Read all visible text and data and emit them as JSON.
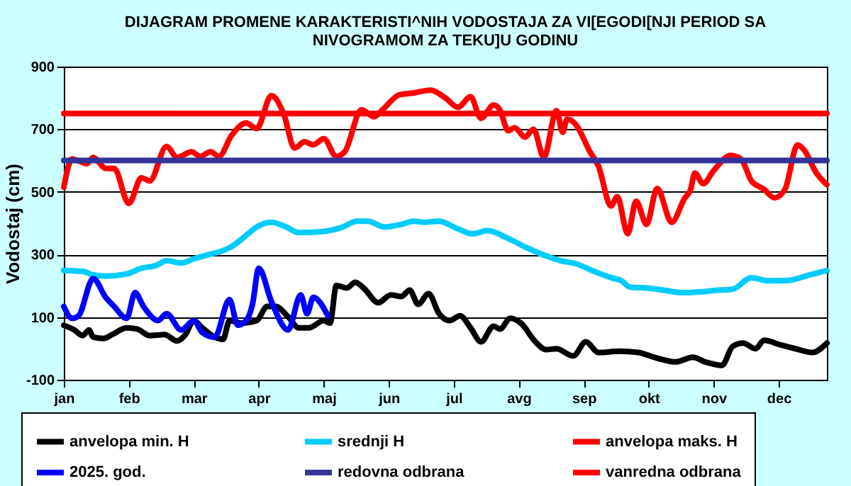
{
  "chart_data": {
    "type": "line",
    "title": "DIJAGRAM PROMENE  KARAKTERISTI^NIH  VODOSTAJA ZA VI[EGODI[NJI PERIOD  SA NIVOGRAMOM ZA TEKU]U  GODINU",
    "ylabel": "Vodostaj (cm)",
    "xlim": [
      "--01-01",
      "--12-31"
    ],
    "xticks": [
      {
        "value": "--01-01",
        "label": "jan"
      },
      {
        "value": "--02-01",
        "label": "feb"
      },
      {
        "value": "--03-04",
        "label": "mar"
      },
      {
        "value": "--04-04",
        "label": "apr"
      },
      {
        "value": "--05-05",
        "label": "maj"
      },
      {
        "value": "--06-05",
        "label": "jun"
      },
      {
        "value": "--07-06",
        "label": "jul"
      },
      {
        "value": "--08-06",
        "label": "avg"
      },
      {
        "value": "--09-06",
        "label": "sep"
      },
      {
        "value": "--10-07",
        "label": "okt"
      },
      {
        "value": "--11-07",
        "label": "nov"
      },
      {
        "value": "--12-08",
        "label": "dec"
      }
    ],
    "ylim": [
      -100,
      900
    ],
    "yticks": [
      -100,
      100,
      300,
      500,
      700,
      900
    ],
    "grid": "y",
    "legend": "bottom",
    "marker": "none",
    "line_style": "solid",
    "series": [
      {
        "name": "anvelopa min. H",
        "color": "#000000",
        "x": [
          "--01-01",
          "--01-06",
          "--01-10",
          "--01-13",
          "--01-15",
          "--01-20",
          "--01-24",
          "--01-31",
          "--02-05",
          "--02-11",
          "--02-18",
          "--02-24",
          "--02-28",
          "--03-04",
          "--03-08",
          "--03-14",
          "--03-18",
          "--03-21",
          "--03-27",
          "--04-03",
          "--04-08",
          "--04-12",
          "--04-18",
          "--04-23",
          "--04-28",
          "--05-05",
          "--05-08",
          "--05-11",
          "--05-16",
          "--05-20",
          "--05-24",
          "--05-31",
          "--06-06",
          "--06-11",
          "--06-15",
          "--06-19",
          "--06-24",
          "--06-29",
          "--07-04",
          "--07-09",
          "--07-14",
          "--07-19",
          "--07-25",
          "--07-28",
          "--08-02",
          "--08-07",
          "--08-14",
          "--08-19",
          "--08-24",
          "--09-01",
          "--09-07",
          "--09-13",
          "--09-23",
          "--10-02",
          "--10-11",
          "--10-20",
          "--10-28",
          "--11-03",
          "--11-11",
          "--11-16",
          "--11-21",
          "--11-27",
          "--12-01",
          "--12-09",
          "--12-16",
          "--12-24",
          "--12-31"
        ],
        "values": [
          74,
          59,
          41,
          59,
          36,
          32,
          44,
          66,
          62,
          41,
          44,
          24,
          44,
          89,
          66,
          36,
          29,
          89,
          81,
          89,
          134,
          134,
          101,
          66,
          66,
          89,
          81,
          201,
          193,
          211,
          193,
          146,
          171,
          166,
          186,
          141,
          175,
          111,
          89,
          104,
          66,
          21,
          71,
          62,
          96,
          81,
          21,
          -4,
          -1,
          -24,
          21,
          -13,
          -9,
          -13,
          -31,
          -43,
          -28,
          -43,
          -54,
          6,
          17,
          -1,
          26,
          11,
          -1,
          -13,
          17
        ]
      },
      {
        "name": "srednji H",
        "color": "#00ccff",
        "x": [
          "--01-01",
          "--01-10",
          "--01-15",
          "--01-21",
          "--01-31",
          "--02-07",
          "--02-14",
          "--02-19",
          "--02-26",
          "--03-04",
          "--03-12",
          "--03-17",
          "--03-22",
          "--03-29",
          "--04-03",
          "--04-10",
          "--04-17",
          "--04-23",
          "--05-04",
          "--05-13",
          "--05-21",
          "--05-26",
          "--06-03",
          "--06-11",
          "--06-17",
          "--06-22",
          "--06-29",
          "--07-07",
          "--07-15",
          "--07-22",
          "--08-01",
          "--08-10",
          "--08-18",
          "--08-26",
          "--09-02",
          "--09-11",
          "--09-19",
          "--09-24",
          "--09-28",
          "--10-06",
          "--10-14",
          "--10-23",
          "--11-01",
          "--11-09",
          "--11-16",
          "--11-25",
          "--12-03",
          "--12-12",
          "--12-23",
          "--12-31"
        ],
        "values": [
          249,
          246,
          235,
          231,
          238,
          256,
          265,
          280,
          273,
          286,
          301,
          310,
          325,
          361,
          388,
          403,
          388,
          370,
          373,
          385,
          406,
          406,
          388,
          396,
          406,
          403,
          406,
          385,
          366,
          376,
          351,
          321,
          298,
          280,
          271,
          246,
          226,
          216,
          196,
          193,
          186,
          178,
          181,
          186,
          189,
          226,
          216,
          217,
          235,
          249
        ]
      },
      {
        "name": "anvelopa maks. H",
        "color": "#ff0000",
        "x": [
          "--01-01",
          "--01-05",
          "--01-12",
          "--01-15",
          "--01-21",
          "--01-25",
          "--02-01",
          "--02-07",
          "--02-11",
          "--02-19",
          "--02-24",
          "--03-03",
          "--03-07",
          "--03-12",
          "--03-16",
          "--03-22",
          "--03-29",
          "--04-03",
          "--04-10",
          "--04-16",
          "--04-21",
          "--04-26",
          "--04-30",
          "--05-05",
          "--05-11",
          "--05-15",
          "--05-23",
          "--05-29",
          "--06-02",
          "--06-10",
          "--06-16",
          "--06-25",
          "--07-02",
          "--07-08",
          "--07-14",
          "--07-19",
          "--07-25",
          "--07-28",
          "--08-01",
          "--08-04",
          "--08-09",
          "--08-13",
          "--08-18",
          "--08-24",
          "--08-27",
          "--08-29",
          "--09-02",
          "--09-09",
          "--09-13",
          "--09-19",
          "--09-22",
          "--09-27",
          "--10-01",
          "--10-06",
          "--10-11",
          "--10-18",
          "--10-24",
          "--10-27",
          "--10-29",
          "--11-02",
          "--11-07",
          "--11-15",
          "--11-20",
          "--11-25",
          "--12-01",
          "--12-06",
          "--12-11",
          "--12-17",
          "--12-20",
          "--12-26",
          "--12-31"
        ],
        "values": [
          515,
          605,
          590,
          610,
          575,
          575,
          463,
          545,
          535,
          645,
          610,
          628,
          613,
          628,
          613,
          680,
          720,
          702,
          807,
          747,
          640,
          660,
          650,
          670,
          613,
          628,
          762,
          740,
          762,
          810,
          815,
          825,
          800,
          770,
          804,
          735,
          777,
          762,
          695,
          705,
          675,
          700,
          610,
          759,
          690,
          732,
          717,
          628,
          583,
          455,
          485,
          366,
          470,
          396,
          511,
          403,
          478,
          508,
          560,
          526,
          568,
          616,
          605,
          535,
          508,
          481,
          508,
          650,
          635,
          560,
          523
        ]
      },
      {
        "name": "2025. god.",
        "color": "#0000ff",
        "x": [
          "--01-01",
          "--01-05",
          "--01-08",
          "--01-15",
          "--01-21",
          "--01-25",
          "--01-31",
          "--02-04",
          "--02-08",
          "--02-15",
          "--02-19",
          "--02-26",
          "--03-04",
          "--03-08",
          "--03-14",
          "--03-21",
          "--03-25",
          "--03-29",
          "--04-01",
          "--04-04",
          "--04-10",
          "--04-18",
          "--04-24",
          "--04-27",
          "--04-30",
          "--05-07"
        ],
        "values": [
          134,
          96,
          104,
          223,
          163,
          134,
          96,
          178,
          134,
          89,
          111,
          59,
          89,
          51,
          36,
          156,
          74,
          89,
          141,
          256,
          150,
          59,
          171,
          111,
          163,
          104
        ]
      },
      {
        "name": "redovna odbrana",
        "color": "#333399",
        "x": [
          "--01-01",
          "--12-31"
        ],
        "values": [
          600,
          600
        ]
      },
      {
        "name": "vanredna odbrana",
        "color": "#ff0000",
        "x": [
          "--01-01",
          "--12-31"
        ],
        "values": [
          750,
          750
        ]
      }
    ]
  }
}
